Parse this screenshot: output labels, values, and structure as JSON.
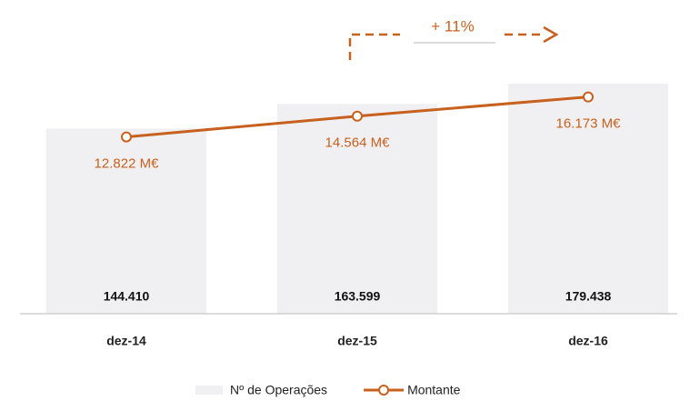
{
  "chart_data": {
    "type": "bar_line",
    "categories": [
      "dez-14",
      "dez-15",
      "dez-16"
    ],
    "series": [
      {
        "name": "Nº de Operações",
        "type": "bar",
        "color": "#f0f0f2",
        "values": [
          144410,
          163599,
          179438
        ],
        "value_labels": [
          "144.410",
          "163.599",
          "179.438"
        ]
      },
      {
        "name": "Montante",
        "type": "line",
        "axis": "y2",
        "color": "#c8601e",
        "values": [
          12.822,
          14.564,
          16.173
        ],
        "value_labels": [
          "12.822 M€",
          "14.564 M€",
          "16.173 M€"
        ]
      }
    ],
    "ylim": [
      0,
      200000
    ],
    "y2lim": [
      -2,
      19.5
    ],
    "annotation": "+ 11%",
    "legend": "bottom"
  }
}
